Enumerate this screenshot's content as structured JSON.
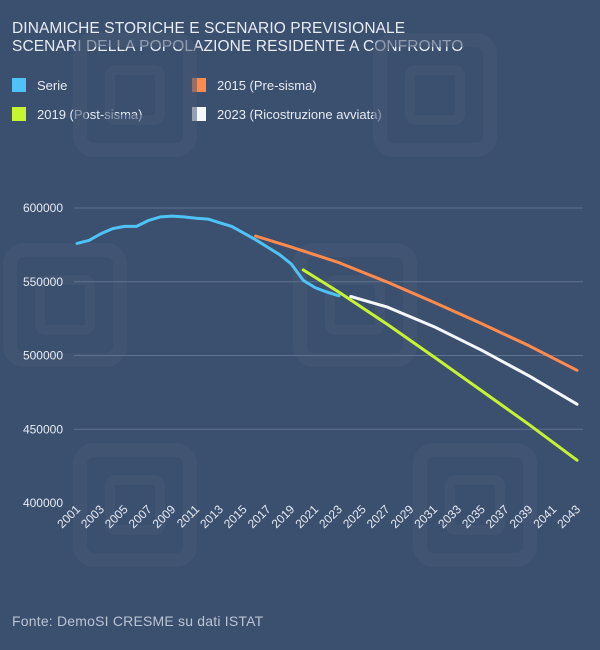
{
  "title_lines": [
    "DINAMICHE STORICHE E SCENARIO PREVISIONALE",
    "SCENARI DELLA POPOLAZIONE RESIDENTE A CONFRONTO"
  ],
  "source": "Fonte: DemoSI CRESME su dati ISTAT",
  "colors": {
    "background": "#3b4f6e",
    "grid": "#5f7290",
    "watermark": "#475a78"
  },
  "chart_data": {
    "type": "line",
    "title": "DINAMICHE STORICHE E SCENARIO PREVISIONALE — SCENARI DELLA POPOLAZIONE RESIDENTE A CONFRONTO",
    "xlabel": "",
    "ylabel": "",
    "xlim": [
      2001,
      2043
    ],
    "ylim": [
      400000,
      600000
    ],
    "y_ticks": [
      400000,
      450000,
      500000,
      550000,
      600000
    ],
    "y_tick_labels": [
      "400000",
      "450000",
      "500000",
      "550000",
      "600000"
    ],
    "x_ticks": [
      2001,
      2003,
      2005,
      2007,
      2009,
      2011,
      2013,
      2015,
      2017,
      2019,
      2021,
      2023,
      2025,
      2027,
      2029,
      2031,
      2033,
      2035,
      2037,
      2039,
      2041,
      2043
    ],
    "x_tick_labels": [
      "2001",
      "2003",
      "2005",
      "2007",
      "2009",
      "2011",
      "2013",
      "2015",
      "2017",
      "2019",
      "2021",
      "2023",
      "2025",
      "2027",
      "2029",
      "2031",
      "2033",
      "2035",
      "2037",
      "2039",
      "2041",
      "2043"
    ],
    "grid": true,
    "legend_position": "top",
    "series": [
      {
        "name": "Serie",
        "color": "#4fc3f7",
        "x": [
          2001,
          2002,
          2003,
          2004,
          2005,
          2006,
          2007,
          2008,
          2009,
          2010,
          2011,
          2012,
          2013,
          2014,
          2015,
          2016,
          2017,
          2018,
          2019,
          2020,
          2021,
          2022,
          2023
        ],
        "values": [
          576000,
          578000,
          582500,
          586000,
          587500,
          587500,
          591500,
          594000,
          594500,
          594000,
          593000,
          592500,
          590000,
          587500,
          583000,
          578500,
          573500,
          568500,
          562000,
          551000,
          546000,
          543000,
          540500
        ]
      },
      {
        "name": "2015 (Pre-sisma)",
        "color": "#ff8a4c",
        "x": [
          2016,
          2019,
          2023,
          2027,
          2031,
          2035,
          2039,
          2043
        ],
        "values": [
          581000,
          573500,
          563000,
          550000,
          536000,
          521500,
          506500,
          490000
        ]
      },
      {
        "name": "2019 (Post-sisma)",
        "color": "#c6f432",
        "x": [
          2020,
          2023,
          2027,
          2031,
          2035,
          2039,
          2043
        ],
        "values": [
          558000,
          543000,
          521500,
          499000,
          476000,
          453000,
          429000
        ]
      },
      {
        "name": "2023 (Ricostruzione avviata)",
        "color": "#f5f7fa",
        "x": [
          2024,
          2027,
          2031,
          2035,
          2039,
          2043
        ],
        "values": [
          540000,
          533000,
          519500,
          503500,
          486000,
          467000
        ]
      }
    ]
  }
}
